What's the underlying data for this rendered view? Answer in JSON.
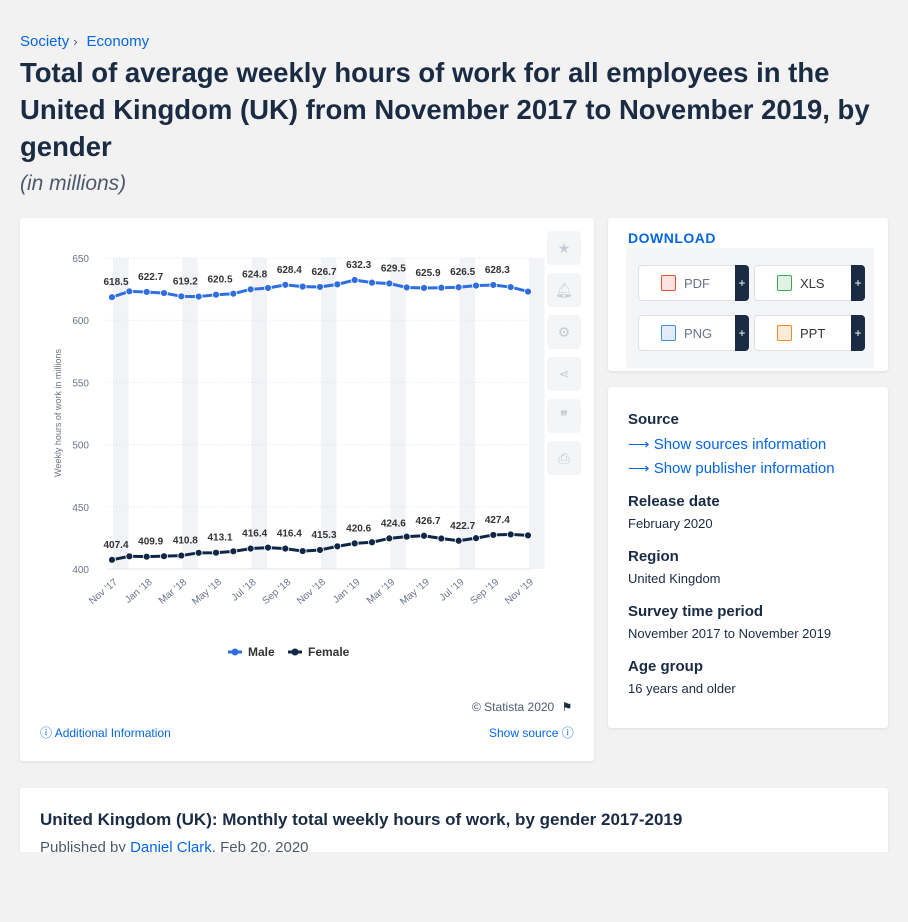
{
  "breadcrumb": {
    "items": [
      "Society",
      "Economy"
    ],
    "separator": "›"
  },
  "page": {
    "title": "Total of average weekly hours of work for all employees in the United Kingdom (UK) from November 2017 to November 2019, by gender",
    "subtitle": "(in millions)"
  },
  "chart_data": {
    "type": "line",
    "ylabel": "Weekly hours of work in millions",
    "xlabel": "",
    "ylim": [
      400,
      650
    ],
    "yticks": [
      400,
      450,
      500,
      550,
      600,
      650
    ],
    "grid": true,
    "legend_position": "bottom",
    "x": [
      "Nov '17",
      "Dec '17",
      "Jan '18",
      "Feb '18",
      "Mar '18",
      "Apr '18",
      "May '18",
      "Jun '18",
      "Jul '18",
      "Aug '18",
      "Sep '18",
      "Oct '18",
      "Nov '18",
      "Dec '18",
      "Jan '19",
      "Feb '19",
      "Mar '19",
      "Apr '19",
      "May '19",
      "Jun '19",
      "Jul '19",
      "Aug '19",
      "Sep '19",
      "Oct '19",
      "Nov '19"
    ],
    "xtick_labels": [
      "Nov '17",
      "Jan '18",
      "Mar '18",
      "May '18",
      "Jul '18",
      "Sep '18",
      "Nov '18",
      "Jan '19",
      "Mar '19",
      "May '19",
      "Jul '19",
      "Sep '19",
      "Nov '19"
    ],
    "series": [
      {
        "name": "Male",
        "color": "#2f6ee0",
        "values": [
          618.5,
          623.2,
          622.7,
          621.8,
          619.2,
          619.0,
          620.5,
          621.3,
          624.8,
          625.9,
          628.4,
          627.0,
          626.7,
          628.8,
          632.3,
          630.2,
          629.5,
          626.3,
          625.9,
          626.1,
          626.5,
          627.8,
          628.3,
          626.6,
          623.0
        ],
        "labels": [
          "618.5",
          "622.7",
          "619.2",
          "620.5",
          "624.8",
          "628.4",
          "626.7",
          "632.3",
          "629.5",
          "625.9",
          "626.5",
          "628.3"
        ]
      },
      {
        "name": "Female",
        "color": "#0f2746",
        "values": [
          407.4,
          410.2,
          409.9,
          410.3,
          410.8,
          413.0,
          413.1,
          414.2,
          416.4,
          417.2,
          416.4,
          414.4,
          415.3,
          418.2,
          420.6,
          421.5,
          424.6,
          426.0,
          426.7,
          424.5,
          422.7,
          424.8,
          427.4,
          427.8,
          427.0
        ],
        "labels": [
          "407.4",
          "409.9",
          "410.8",
          "413.1",
          "416.4",
          "416.4",
          "415.3",
          "420.6",
          "424.6",
          "426.7",
          "422.7",
          "427.4"
        ]
      }
    ]
  },
  "chart_footer": {
    "copyright": "© Statista 2020",
    "additional_info": "Additional Information",
    "show_source": "Show source"
  },
  "download": {
    "title": "DOWNLOAD",
    "buttons": [
      {
        "label": "PDF",
        "color": "#e5533d"
      },
      {
        "label": "XLS",
        "color": "#3aa856"
      },
      {
        "label": "PNG",
        "color": "#4b8bd6"
      },
      {
        "label": "PPT",
        "color": "#f08a24"
      }
    ],
    "plus": "+"
  },
  "info": {
    "source_label": "Source",
    "show_sources": "Show sources information",
    "show_publisher": "Show publisher information",
    "release_label": "Release date",
    "release_value": "February 2020",
    "region_label": "Region",
    "region_value": "United Kingdom",
    "period_label": "Survey time period",
    "period_value": "November 2017 to November 2019",
    "age_label": "Age group",
    "age_value": "16 years and older"
  },
  "bottom": {
    "heading": "United Kingdom (UK): Monthly total weekly hours of work, by gender 2017-2019",
    "published_prefix": "Published by",
    "author": "Daniel Clark",
    "date": ", Feb 20, 2020"
  },
  "icons": [
    "star-icon",
    "bell-icon",
    "gear-icon",
    "share-icon",
    "quote-icon",
    "print-icon",
    "flag-icon",
    "info-icon",
    "arrow-right-icon"
  ]
}
